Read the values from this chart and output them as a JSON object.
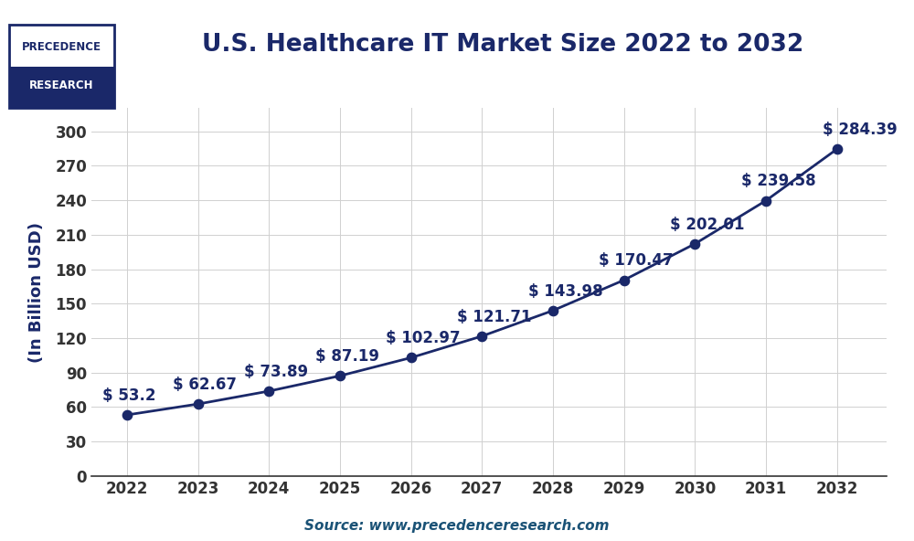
{
  "title": "U.S. Healthcare IT Market Size 2022 to 2032",
  "ylabel": "(In Billion USD)",
  "source_text": "Source: www.precedenceresearch.com",
  "years": [
    2022,
    2023,
    2024,
    2025,
    2026,
    2027,
    2028,
    2029,
    2030,
    2031,
    2032
  ],
  "values": [
    53.2,
    62.67,
    73.89,
    87.19,
    102.97,
    121.71,
    143.98,
    170.47,
    202.01,
    239.58,
    284.39
  ],
  "labels": [
    "$ 53.2",
    "$ 62.67",
    "$ 73.89",
    "$ 87.19",
    "$ 102.97",
    "$ 121.71",
    "$ 143.98",
    "$ 170.47",
    "$ 202.01",
    "$ 239.58",
    "$ 284.39"
  ],
  "label_offsets_x": [
    -0.35,
    -0.35,
    -0.35,
    -0.35,
    -0.35,
    -0.35,
    -0.35,
    -0.35,
    -0.35,
    -0.35,
    -0.2
  ],
  "label_offsets_y": [
    12,
    12,
    12,
    12,
    12,
    12,
    12,
    12,
    12,
    12,
    12
  ],
  "line_color": "#1a2869",
  "marker_color": "#1a2869",
  "title_color": "#1a2869",
  "label_color": "#1a2869",
  "axis_color": "#333333",
  "grid_color": "#d0d0d0",
  "background_color": "#ffffff",
  "source_color": "#1a5276",
  "ylim": [
    0,
    320
  ],
  "yticks": [
    0,
    30,
    60,
    90,
    120,
    150,
    180,
    210,
    240,
    270,
    300
  ],
  "title_fontsize": 19,
  "ylabel_fontsize": 13,
  "tick_fontsize": 12,
  "label_fontsize": 12,
  "source_fontsize": 11,
  "logo_text_top": "PRECEDENCE",
  "logo_text_bottom": "RESEARCH",
  "logo_border_color": "#1a2869",
  "logo_bg_color": "#1a2869",
  "logo_text_color_top": "#1a2869",
  "logo_text_color_bottom": "#ffffff"
}
